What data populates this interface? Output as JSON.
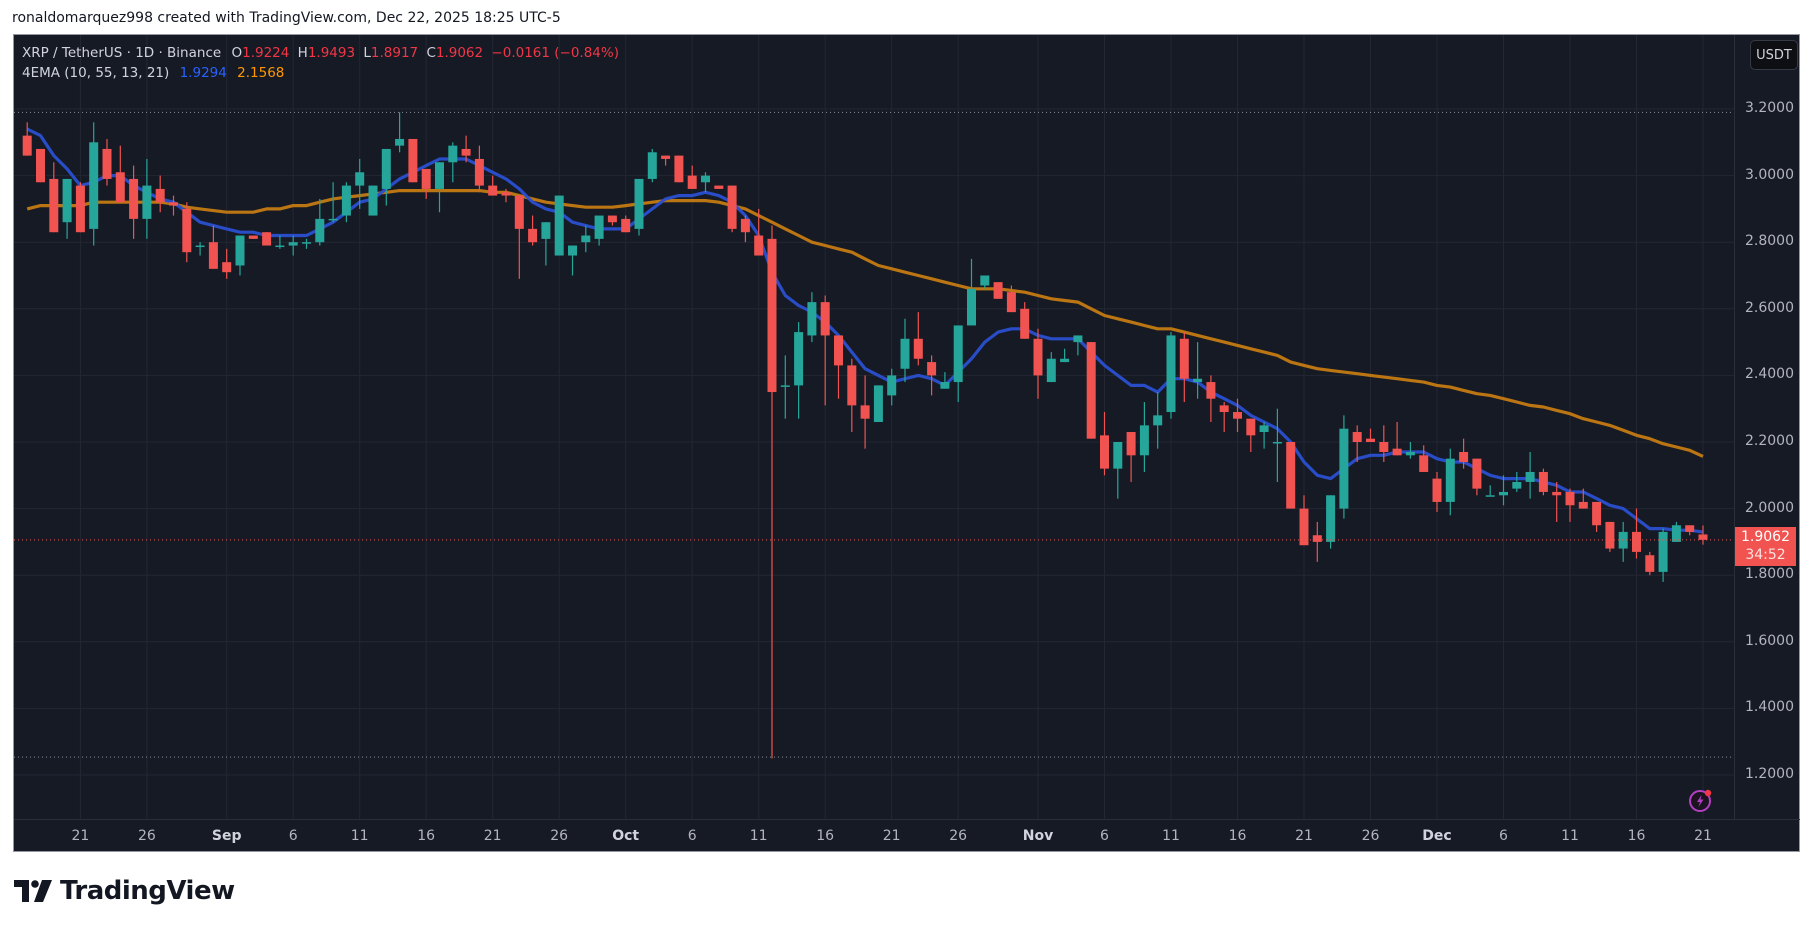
{
  "header": {
    "credit": "ronaldomarquez998 created with TradingView.com, Dec 22, 2025 18:25 UTC-5"
  },
  "legend": {
    "symbol": "XRP / TetherUS · 1D · Binance",
    "open_label": "O",
    "open": "1.9224",
    "high_label": "H",
    "high": "1.9493",
    "low_label": "L",
    "low": "1.8917",
    "close_label": "C",
    "close": "1.9062",
    "change": "−0.0161 (−0.84%)",
    "indicator": "4EMA (10, 55, 13, 21)",
    "ema_fast": "1.9294",
    "ema_slow": "2.1568"
  },
  "price_axis": {
    "currency_button": "USDT",
    "current_price": "1.9062",
    "countdown": "34:52"
  },
  "footer": {
    "brand": "TradingView"
  },
  "colors": {
    "background": "#161a25",
    "up": "#26a69a",
    "down": "#f05350",
    "ema_fast": "#2a4fd0",
    "ema_slow": "#c47a12",
    "grid": "#232733"
  },
  "chart_data": {
    "type": "candlestick",
    "title": "XRP / TetherUS · 1D · Binance",
    "xlabel": "",
    "ylabel": "USDT",
    "ylim": [
      1.1,
      3.25
    ],
    "grid": true,
    "y_ticks": [
      "3.2000",
      "3.0000",
      "2.8000",
      "2.6000",
      "2.4000",
      "2.2000",
      "2.0000",
      "1.8000",
      "1.6000",
      "1.4000",
      "1.2000"
    ],
    "x_ticks": [
      {
        "label": "21",
        "day": 4
      },
      {
        "label": "26",
        "day": 9
      },
      {
        "label": "Sep",
        "day": 15,
        "month": true
      },
      {
        "label": "6",
        "day": 20
      },
      {
        "label": "11",
        "day": 25
      },
      {
        "label": "16",
        "day": 30
      },
      {
        "label": "21",
        "day": 35
      },
      {
        "label": "26",
        "day": 40
      },
      {
        "label": "Oct",
        "day": 45,
        "month": true
      },
      {
        "label": "6",
        "day": 50
      },
      {
        "label": "11",
        "day": 55
      },
      {
        "label": "16",
        "day": 60
      },
      {
        "label": "21",
        "day": 65
      },
      {
        "label": "26",
        "day": 70
      },
      {
        "label": "Nov",
        "day": 76,
        "month": true
      },
      {
        "label": "6",
        "day": 81
      },
      {
        "label": "11",
        "day": 86
      },
      {
        "label": "16",
        "day": 91
      },
      {
        "label": "21",
        "day": 96
      },
      {
        "label": "26",
        "day": 101
      },
      {
        "label": "Dec",
        "day": 106,
        "month": true
      },
      {
        "label": "6",
        "day": 111
      },
      {
        "label": "11",
        "day": 116
      },
      {
        "label": "16",
        "day": 121
      },
      {
        "label": "21",
        "day": 126
      }
    ],
    "date_range": [
      "Aug 17",
      "Dec 22"
    ],
    "high_line": 3.19,
    "low_line": 1.2537,
    "last_close": 1.9062,
    "series": [
      {
        "name": "EMA 10",
        "color": "#2a4fd0",
        "last": 1.9294
      },
      {
        "name": "EMA 55",
        "color": "#c47a12",
        "last": 2.1568
      }
    ],
    "candles": [
      [
        3.12,
        3.16,
        3.06,
        3.06
      ],
      [
        3.08,
        3.08,
        2.98,
        2.98
      ],
      [
        2.99,
        3.04,
        2.83,
        2.83
      ],
      [
        2.86,
        2.95,
        2.81,
        2.99
      ],
      [
        2.97,
        2.98,
        2.83,
        2.83
      ],
      [
        2.84,
        3.16,
        2.79,
        3.1
      ],
      [
        3.08,
        3.11,
        2.97,
        2.99
      ],
      [
        3.01,
        3.09,
        2.96,
        2.92
      ],
      [
        2.99,
        3.03,
        2.81,
        2.87
      ],
      [
        2.87,
        3.05,
        2.81,
        2.97
      ],
      [
        2.96,
        3.0,
        2.89,
        2.92
      ],
      [
        2.92,
        2.94,
        2.88,
        2.91
      ],
      [
        2.9,
        2.92,
        2.74,
        2.77
      ],
      [
        2.79,
        2.8,
        2.76,
        2.79
      ],
      [
        2.8,
        2.85,
        2.72,
        2.72
      ],
      [
        2.74,
        2.78,
        2.69,
        2.71
      ],
      [
        2.73,
        2.82,
        2.7,
        2.82
      ],
      [
        2.82,
        2.82,
        2.81,
        2.81
      ],
      [
        2.83,
        2.82,
        2.82,
        2.79
      ],
      [
        2.79,
        2.82,
        2.78,
        2.79
      ],
      [
        2.79,
        2.82,
        2.76,
        2.8
      ],
      [
        2.8,
        2.81,
        2.78,
        2.8
      ],
      [
        2.8,
        2.93,
        2.79,
        2.87
      ],
      [
        2.87,
        2.98,
        2.86,
        2.87
      ],
      [
        2.88,
        2.98,
        2.86,
        2.97
      ],
      [
        2.97,
        3.05,
        2.9,
        3.01
      ],
      [
        2.88,
        2.97,
        2.88,
        2.97
      ],
      [
        2.96,
        3.08,
        2.91,
        3.08
      ],
      [
        3.09,
        3.19,
        3.07,
        3.11
      ],
      [
        3.11,
        3.1,
        2.98,
        2.98
      ],
      [
        3.02,
        3.01,
        2.93,
        2.96
      ],
      [
        2.96,
        3.04,
        2.89,
        3.04
      ],
      [
        3.04,
        3.1,
        2.98,
        3.09
      ],
      [
        3.08,
        3.12,
        3.04,
        3.06
      ],
      [
        3.05,
        3.09,
        2.95,
        2.97
      ],
      [
        2.97,
        3.0,
        2.94,
        2.94
      ],
      [
        2.95,
        2.96,
        2.92,
        2.94
      ],
      [
        2.94,
        2.94,
        2.69,
        2.84
      ],
      [
        2.84,
        2.88,
        2.79,
        2.8
      ],
      [
        2.81,
        2.79,
        2.73,
        2.86
      ],
      [
        2.76,
        2.94,
        2.76,
        2.94
      ],
      [
        2.76,
        2.77,
        2.7,
        2.79
      ],
      [
        2.8,
        2.85,
        2.77,
        2.82
      ],
      [
        2.81,
        2.86,
        2.79,
        2.88
      ],
      [
        2.88,
        2.87,
        2.85,
        2.86
      ],
      [
        2.87,
        2.88,
        2.85,
        2.83
      ],
      [
        2.84,
        2.99,
        2.82,
        2.99
      ],
      [
        2.99,
        3.08,
        2.98,
        3.07
      ],
      [
        3.06,
        3.06,
        3.03,
        3.05
      ],
      [
        3.06,
        3.02,
        2.98,
        2.98
      ],
      [
        3.0,
        3.03,
        2.98,
        2.96
      ],
      [
        2.98,
        3.01,
        2.95,
        3.0
      ],
      [
        2.97,
        2.97,
        2.99,
        2.96
      ],
      [
        2.97,
        2.96,
        2.83,
        2.84
      ],
      [
        2.87,
        2.88,
        2.8,
        2.83
      ],
      [
        2.82,
        2.9,
        2.76,
        2.76
      ],
      [
        2.81,
        2.85,
        1.25,
        2.35
      ],
      [
        2.37,
        2.46,
        2.27,
        2.37
      ],
      [
        2.37,
        2.56,
        2.27,
        2.53
      ],
      [
        2.52,
        2.65,
        2.5,
        2.62
      ],
      [
        2.62,
        2.64,
        2.31,
        2.52
      ],
      [
        2.52,
        2.52,
        2.33,
        2.43
      ],
      [
        2.43,
        2.45,
        2.23,
        2.31
      ],
      [
        2.31,
        2.4,
        2.18,
        2.27
      ],
      [
        2.26,
        2.37,
        2.3,
        2.37
      ],
      [
        2.34,
        2.42,
        2.31,
        2.4
      ],
      [
        2.42,
        2.57,
        2.38,
        2.51
      ],
      [
        2.51,
        2.59,
        2.43,
        2.45
      ],
      [
        2.44,
        2.46,
        2.34,
        2.4
      ],
      [
        2.36,
        2.41,
        2.37,
        2.38
      ],
      [
        2.38,
        2.53,
        2.32,
        2.55
      ],
      [
        2.55,
        2.75,
        2.55,
        2.66
      ],
      [
        2.67,
        2.7,
        2.66,
        2.7
      ],
      [
        2.68,
        2.68,
        2.63,
        2.63
      ],
      [
        2.65,
        2.67,
        2.6,
        2.59
      ],
      [
        2.6,
        2.62,
        2.51,
        2.51
      ],
      [
        2.51,
        2.54,
        2.33,
        2.4
      ],
      [
        2.38,
        2.47,
        2.41,
        2.45
      ],
      [
        2.44,
        2.48,
        2.51,
        2.45
      ],
      [
        2.5,
        2.52,
        2.46,
        2.52
      ],
      [
        2.5,
        2.5,
        2.21,
        2.21
      ],
      [
        2.22,
        2.29,
        2.1,
        2.12
      ],
      [
        2.12,
        2.2,
        2.03,
        2.2
      ],
      [
        2.23,
        2.22,
        2.08,
        2.16
      ],
      [
        2.16,
        2.32,
        2.11,
        2.25
      ],
      [
        2.25,
        2.35,
        2.18,
        2.28
      ],
      [
        2.29,
        2.53,
        2.27,
        2.52
      ],
      [
        2.51,
        2.53,
        2.32,
        2.39
      ],
      [
        2.38,
        2.5,
        2.33,
        2.39
      ],
      [
        2.38,
        2.4,
        2.26,
        2.33
      ],
      [
        2.31,
        2.32,
        2.23,
        2.29
      ],
      [
        2.29,
        2.33,
        2.23,
        2.27
      ],
      [
        2.27,
        2.22,
        2.17,
        2.22
      ],
      [
        2.23,
        2.26,
        2.18,
        2.25
      ],
      [
        2.2,
        2.3,
        2.08,
        2.2
      ],
      [
        2.2,
        2.2,
        2.03,
        2.0
      ],
      [
        2.0,
        2.04,
        1.92,
        1.89
      ],
      [
        1.92,
        1.96,
        1.84,
        1.9
      ],
      [
        1.9,
        2.0,
        1.88,
        2.04
      ],
      [
        2.0,
        2.28,
        1.97,
        2.24
      ],
      [
        2.23,
        2.25,
        2.14,
        2.2
      ],
      [
        2.21,
        2.24,
        2.2,
        2.2
      ],
      [
        2.2,
        2.25,
        2.14,
        2.17
      ],
      [
        2.18,
        2.26,
        2.16,
        2.16
      ],
      [
        2.16,
        2.2,
        2.15,
        2.17
      ],
      [
        2.16,
        2.19,
        2.11,
        2.11
      ],
      [
        2.09,
        2.11,
        1.99,
        2.02
      ],
      [
        2.02,
        2.18,
        1.98,
        2.15
      ],
      [
        2.17,
        2.21,
        2.12,
        2.14
      ],
      [
        2.15,
        2.15,
        2.04,
        2.06
      ],
      [
        2.04,
        2.07,
        2.05,
        2.04
      ],
      [
        2.04,
        2.1,
        2.01,
        2.05
      ],
      [
        2.06,
        2.11,
        2.05,
        2.08
      ],
      [
        2.08,
        2.17,
        2.03,
        2.11
      ],
      [
        2.11,
        2.12,
        2.04,
        2.05
      ],
      [
        2.05,
        2.08,
        1.96,
        2.04
      ],
      [
        2.05,
        2.06,
        1.96,
        2.01
      ],
      [
        2.02,
        2.06,
        2.0,
        2.0
      ],
      [
        2.02,
        2.02,
        1.93,
        1.95
      ],
      [
        1.96,
        1.95,
        1.87,
        1.88
      ],
      [
        1.88,
        1.96,
        1.84,
        1.93
      ],
      [
        1.93,
        2.0,
        1.85,
        1.87
      ],
      [
        1.86,
        1.87,
        1.8,
        1.81
      ],
      [
        1.81,
        1.94,
        1.78,
        1.93
      ],
      [
        1.9,
        1.96,
        1.91,
        1.95
      ],
      [
        1.95,
        1.95,
        1.92,
        1.93
      ],
      [
        1.9224,
        1.9493,
        1.8917,
        1.9062
      ]
    ],
    "ema_fast": [
      3.14,
      3.12,
      3.06,
      3.02,
      2.97,
      2.98,
      3.0,
      3.0,
      2.97,
      2.95,
      2.93,
      2.92,
      2.89,
      2.86,
      2.85,
      2.84,
      2.83,
      2.83,
      2.82,
      2.82,
      2.82,
      2.82,
      2.84,
      2.86,
      2.89,
      2.92,
      2.93,
      2.96,
      2.99,
      3.01,
      3.03,
      3.05,
      3.05,
      3.05,
      3.03,
      3.01,
      2.99,
      2.96,
      2.92,
      2.9,
      2.89,
      2.86,
      2.85,
      2.84,
      2.84,
      2.84,
      2.87,
      2.9,
      2.93,
      2.94,
      2.94,
      2.95,
      2.94,
      2.92,
      2.88,
      2.82,
      2.71,
      2.64,
      2.61,
      2.59,
      2.56,
      2.52,
      2.47,
      2.42,
      2.4,
      2.38,
      2.39,
      2.4,
      2.39,
      2.37,
      2.41,
      2.45,
      2.5,
      2.53,
      2.54,
      2.54,
      2.52,
      2.51,
      2.51,
      2.51,
      2.47,
      2.43,
      2.4,
      2.37,
      2.37,
      2.35,
      2.39,
      2.39,
      2.38,
      2.35,
      2.33,
      2.31,
      2.28,
      2.26,
      2.24,
      2.2,
      2.14,
      2.1,
      2.09,
      2.12,
      2.15,
      2.16,
      2.16,
      2.17,
      2.17,
      2.17,
      2.15,
      2.14,
      2.14,
      2.12,
      2.1,
      2.09,
      2.09,
      2.09,
      2.08,
      2.07,
      2.05,
      2.05,
      2.03,
      2.01,
      2.0,
      1.97,
      1.94,
      1.94,
      1.935,
      1.935,
      1.9294
    ],
    "ema_slow": [
      2.9,
      2.91,
      2.91,
      2.91,
      2.91,
      2.92,
      2.92,
      2.92,
      2.92,
      2.92,
      2.92,
      2.915,
      2.905,
      2.9,
      2.895,
      2.89,
      2.89,
      2.89,
      2.9,
      2.9,
      2.91,
      2.91,
      2.92,
      2.93,
      2.935,
      2.94,
      2.945,
      2.95,
      2.955,
      2.955,
      2.955,
      2.955,
      2.955,
      2.955,
      2.955,
      2.95,
      2.95,
      2.94,
      2.93,
      2.92,
      2.915,
      2.91,
      2.905,
      2.905,
      2.905,
      2.91,
      2.915,
      2.92,
      2.925,
      2.925,
      2.925,
      2.925,
      2.92,
      2.91,
      2.9,
      2.88,
      2.86,
      2.84,
      2.82,
      2.8,
      2.79,
      2.78,
      2.77,
      2.75,
      2.73,
      2.72,
      2.71,
      2.7,
      2.69,
      2.68,
      2.67,
      2.66,
      2.66,
      2.66,
      2.655,
      2.65,
      2.64,
      2.63,
      2.625,
      2.62,
      2.6,
      2.58,
      2.57,
      2.56,
      2.55,
      2.54,
      2.54,
      2.53,
      2.52,
      2.51,
      2.5,
      2.49,
      2.48,
      2.47,
      2.46,
      2.44,
      2.43,
      2.42,
      2.415,
      2.41,
      2.405,
      2.4,
      2.395,
      2.39,
      2.385,
      2.38,
      2.37,
      2.365,
      2.355,
      2.345,
      2.34,
      2.33,
      2.32,
      2.31,
      2.305,
      2.295,
      2.285,
      2.27,
      2.26,
      2.25,
      2.235,
      2.22,
      2.21,
      2.195,
      2.185,
      2.175,
      2.1568
    ]
  }
}
